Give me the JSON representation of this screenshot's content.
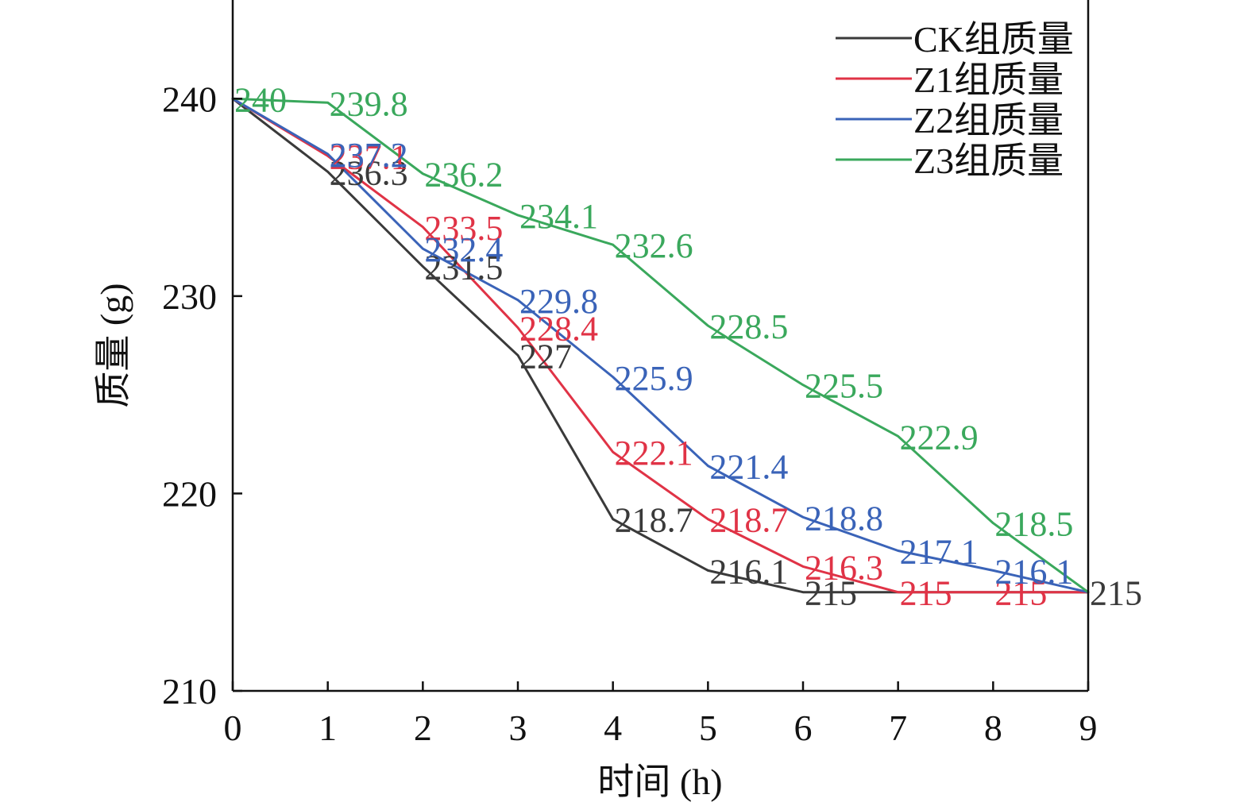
{
  "chart_data": {
    "type": "line",
    "xlabel": "时间 (h)",
    "ylabel": "质量 (g)",
    "xlim": [
      0,
      9
    ],
    "ylim": [
      210,
      245
    ],
    "xticks": [
      "0",
      "1",
      "2",
      "3",
      "4",
      "5",
      "6",
      "7",
      "8",
      "9"
    ],
    "yticks": [
      "210",
      "220",
      "230",
      "240"
    ],
    "legend_position": "top-right",
    "grid": false,
    "x": [
      0,
      1,
      2,
      3,
      4,
      5,
      6,
      7,
      8,
      9
    ],
    "series": [
      {
        "name": "CK组质量",
        "color": "#3a3a3a",
        "values": [
          240,
          236.3,
          231.5,
          227,
          218.7,
          216.1,
          215,
          215,
          215,
          215
        ],
        "labels": [
          "",
          "236.3",
          "231.5",
          "227",
          "218.7",
          "216.1",
          "215",
          "",
          "",
          "215"
        ]
      },
      {
        "name": "Z1组质量",
        "color": "#e03346",
        "values": [
          240,
          237.1,
          233.5,
          228.4,
          222.1,
          218.7,
          216.3,
          215,
          215,
          215
        ],
        "labels": [
          "",
          "237.1",
          "233.5",
          "228.4",
          "222.1",
          "218.7",
          "216.3",
          "215",
          "215",
          ""
        ]
      },
      {
        "name": "Z2组质量",
        "color": "#3a63b8",
        "values": [
          240,
          237.2,
          232.4,
          229.8,
          225.9,
          221.4,
          218.8,
          217.1,
          216.1,
          215
        ],
        "labels": [
          "",
          "237.2",
          "232.4",
          "229.8",
          "225.9",
          "221.4",
          "218.8",
          "217.1",
          "216.1",
          ""
        ]
      },
      {
        "name": "Z3组质量",
        "color": "#3aa85c",
        "values": [
          240,
          239.8,
          236.2,
          234.1,
          232.6,
          228.5,
          225.5,
          222.9,
          218.5,
          215
        ],
        "labels": [
          "240",
          "239.8",
          "236.2",
          "234.1",
          "232.6",
          "228.5",
          "225.5",
          "222.9",
          "218.5",
          ""
        ]
      }
    ]
  }
}
